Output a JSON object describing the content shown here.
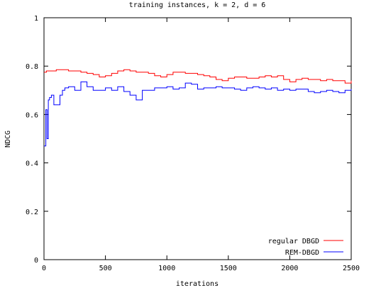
{
  "chart_data": {
    "type": "line",
    "title": "training instances, k = 2, d = 6",
    "xlabel": "iterations",
    "ylabel": "NDCG",
    "xlim": [
      0,
      2500
    ],
    "ylim": [
      0,
      1
    ],
    "xticks": [
      0,
      500,
      1000,
      1500,
      2000,
      2500
    ],
    "yticks": [
      0,
      0.2,
      0.4,
      0.6,
      0.8,
      1
    ],
    "xtick_labels": [
      "0",
      "500",
      "1000",
      "1500",
      "2000",
      "2500"
    ],
    "ytick_labels": [
      "0",
      "0.2",
      "0.4",
      "0.6",
      "0.8",
      "1"
    ],
    "grid": false,
    "legend_position": "bottom-right",
    "series": [
      {
        "name": "regular DBGD",
        "color": "#ff0000",
        "x": [
          0,
          5,
          20,
          60,
          100,
          150,
          200,
          250,
          300,
          350,
          400,
          450,
          500,
          550,
          600,
          650,
          700,
          750,
          800,
          850,
          900,
          950,
          1000,
          1050,
          1100,
          1150,
          1200,
          1250,
          1300,
          1350,
          1400,
          1450,
          1500,
          1550,
          1600,
          1650,
          1700,
          1750,
          1800,
          1850,
          1900,
          1950,
          2000,
          2050,
          2100,
          2150,
          2200,
          2250,
          2300,
          2350,
          2400,
          2450,
          2500
        ],
        "y": [
          0.775,
          0.775,
          0.78,
          0.78,
          0.785,
          0.785,
          0.78,
          0.78,
          0.775,
          0.77,
          0.765,
          0.755,
          0.76,
          0.77,
          0.78,
          0.785,
          0.78,
          0.775,
          0.775,
          0.77,
          0.76,
          0.755,
          0.765,
          0.775,
          0.775,
          0.77,
          0.77,
          0.765,
          0.76,
          0.755,
          0.745,
          0.74,
          0.75,
          0.755,
          0.755,
          0.75,
          0.75,
          0.755,
          0.76,
          0.755,
          0.76,
          0.745,
          0.735,
          0.745,
          0.75,
          0.745,
          0.745,
          0.74,
          0.745,
          0.74,
          0.74,
          0.73,
          0.74
        ]
      },
      {
        "name": "REM-DBGD",
        "color": "#0000ff",
        "x": [
          0,
          5,
          15,
          25,
          35,
          45,
          60,
          80,
          100,
          130,
          150,
          170,
          200,
          250,
          300,
          350,
          400,
          450,
          500,
          550,
          600,
          650,
          700,
          750,
          800,
          850,
          900,
          950,
          1000,
          1050,
          1100,
          1150,
          1200,
          1250,
          1300,
          1350,
          1400,
          1450,
          1500,
          1550,
          1600,
          1650,
          1700,
          1750,
          1800,
          1850,
          1900,
          1950,
          2000,
          2050,
          2100,
          2150,
          2200,
          2250,
          2300,
          2350,
          2400,
          2450,
          2500
        ],
        "y": [
          0.47,
          0.47,
          0.62,
          0.5,
          0.66,
          0.67,
          0.68,
          0.64,
          0.64,
          0.68,
          0.7,
          0.71,
          0.715,
          0.7,
          0.735,
          0.715,
          0.7,
          0.7,
          0.71,
          0.7,
          0.715,
          0.695,
          0.68,
          0.66,
          0.7,
          0.7,
          0.71,
          0.71,
          0.715,
          0.705,
          0.71,
          0.73,
          0.725,
          0.705,
          0.71,
          0.71,
          0.715,
          0.71,
          0.71,
          0.705,
          0.7,
          0.71,
          0.715,
          0.71,
          0.705,
          0.71,
          0.7,
          0.705,
          0.7,
          0.705,
          0.705,
          0.695,
          0.69,
          0.695,
          0.7,
          0.695,
          0.69,
          0.7,
          0.705
        ]
      }
    ]
  }
}
